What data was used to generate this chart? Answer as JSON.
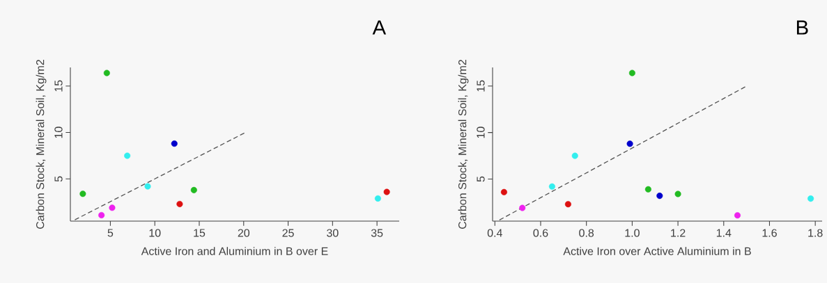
{
  "chart_data": [
    {
      "type": "scatter",
      "title": "A",
      "xlabel": "Active Iron and Aluminium in B over E",
      "ylabel": "Carbon Stock, Mineral Soil, Kg/m2",
      "xlim": [
        0.5,
        37.5
      ],
      "ylim": [
        0.46,
        17
      ],
      "xticks": [
        5,
        10,
        15,
        20,
        25,
        30,
        35
      ],
      "yticks": [
        5,
        10,
        15
      ],
      "grid": false,
      "series": [
        {
          "color": "#22bb22",
          "marker": "circle",
          "x": [
            4.6,
            1.9,
            14.4
          ],
          "values": [
            16.4,
            3.4,
            3.8
          ]
        },
        {
          "color": "#ee22ee",
          "marker": "circle",
          "x": [
            4.0,
            5.2
          ],
          "values": [
            1.1,
            1.9
          ]
        },
        {
          "color": "#33eeee",
          "marker": "circle",
          "x": [
            6.9,
            9.2,
            35.1
          ],
          "values": [
            7.5,
            4.2,
            2.9
          ]
        },
        {
          "color": "#0000cc",
          "marker": "circle",
          "x": [
            12.2
          ],
          "values": [
            8.8
          ]
        },
        {
          "color": "#dd1111",
          "marker": "circle",
          "x": [
            12.8,
            36.1
          ],
          "values": [
            2.3,
            3.6
          ]
        },
        {
          "type": "line",
          "color": "#555555",
          "line_style": "dashed",
          "marker": "none",
          "x": [
            1.0,
            20.2
          ],
          "values": [
            0.6,
            10.0
          ]
        }
      ]
    },
    {
      "type": "scatter",
      "title": "B",
      "xlabel": "Active Iron over Active Aluminium in B",
      "ylabel": "Carbon Stock, Mineral Soil, Kg/m2",
      "xlim": [
        0.39,
        1.83
      ],
      "ylim": [
        0.48,
        17
      ],
      "xticks": [
        0.4,
        0.6,
        0.8,
        {
          "value": 1,
          "label": "1.0"
        },
        1.2,
        1.4,
        1.6,
        1.8
      ],
      "yticks": [
        5,
        10,
        15
      ],
      "grid": false,
      "series": [
        {
          "color": "#22bb22",
          "marker": "circle",
          "x": [
            1.0,
            1.07,
            1.2
          ],
          "values": [
            16.4,
            3.9,
            3.4
          ]
        },
        {
          "color": "#ee22ee",
          "marker": "circle",
          "x": [
            0.52,
            1.46
          ],
          "values": [
            1.9,
            1.1
          ]
        },
        {
          "color": "#33eeee",
          "marker": "circle",
          "x": [
            0.65,
            0.75,
            1.78
          ],
          "values": [
            4.2,
            7.5,
            2.9
          ]
        },
        {
          "color": "#0000cc",
          "marker": "circle",
          "x": [
            0.99,
            1.12
          ],
          "values": [
            8.8,
            3.2
          ]
        },
        {
          "color": "#dd1111",
          "marker": "circle",
          "x": [
            0.44,
            0.72
          ],
          "values": [
            3.6,
            2.3
          ]
        },
        {
          "type": "line",
          "color": "#555555",
          "line_style": "dashed",
          "marker": "none",
          "x": [
            0.42,
            1.5
          ],
          "values": [
            0.6,
            15.0
          ]
        }
      ]
    }
  ]
}
